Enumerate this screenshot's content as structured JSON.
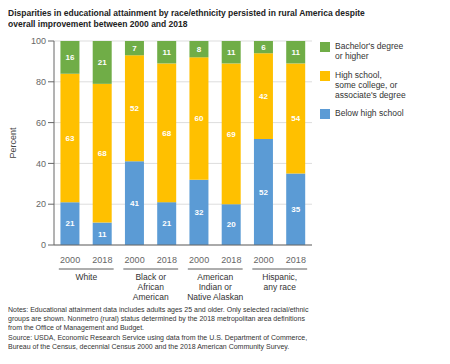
{
  "chart_data": {
    "type": "bar",
    "stacked": true,
    "data_labels": true,
    "grid": true,
    "legend": "right",
    "title": "Disparities in educational attainment by race/ethnicity persisted in rural America despite\noverall improvement between 2000 and 2018",
    "ylabel": "Percent",
    "ylim": [
      0,
      100
    ],
    "yticks": [
      0,
      20,
      40,
      60,
      80,
      100
    ],
    "categories": [
      "2000",
      "2018",
      "2000",
      "2018",
      "2000",
      "2018",
      "2000",
      "2018"
    ],
    "groups": [
      "White",
      "Black or\nAfrican\nAmerican",
      "American\nIndian or\nNative Alaskan",
      "Hispanic,\nany race"
    ],
    "series": [
      {
        "name": "Below high school",
        "color": "#5b9bd5",
        "values": [
          21,
          11,
          41,
          21,
          32,
          20,
          52,
          35
        ]
      },
      {
        "name": "High school,\nsome college, or\nassociate's degree",
        "color": "#ffc000",
        "values": [
          63,
          68,
          52,
          68,
          60,
          69,
          42,
          54
        ]
      },
      {
        "name": "Bachelor's degree\nor higher",
        "color": "#70ad47",
        "values": [
          16,
          21,
          7,
          11,
          8,
          11,
          6,
          11
        ]
      }
    ],
    "notes": "Notes: Educational attainment data includes adults ages 25 and older. Only selected racial/ethnic\ngroups are shown. Nonmetro (rural) status determined by the 2018 metropolitan area definitions\nfrom the Office of Management and Budget.\nSource: USDA, Economic Research Service using data from the U.S. Department of Commerce,\nBureau of the Census, decennial Census 2000 and the 2018 American Community Survey."
  }
}
